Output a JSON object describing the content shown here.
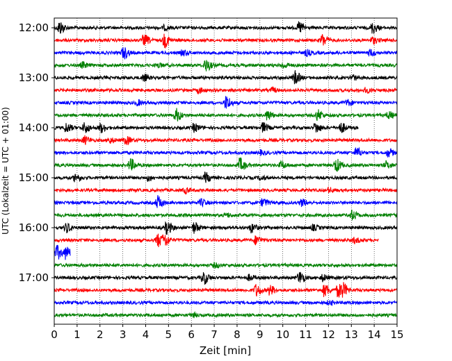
{
  "chart_data": {
    "type": "line",
    "title": "",
    "xlabel": "Zeit  [min]",
    "ylabel": "UTC (Lokalzeit = UTC + 01:00)",
    "xlim": [
      0,
      15
    ],
    "x_ticks": [
      "0",
      "1",
      "2",
      "3",
      "4",
      "5",
      "6",
      "7",
      "8",
      "9",
      "10",
      "11",
      "12",
      "13",
      "14",
      "15"
    ],
    "y_tick_labels": [
      "12:00",
      "13:00",
      "14:00",
      "15:00",
      "16:00",
      "17:00"
    ],
    "grid": "vertical dotted",
    "legend": "none",
    "colors": [
      "#000000",
      "#ff0000",
      "#0000ff",
      "#008000"
    ],
    "traces": [
      {
        "start": "12:00",
        "color": "#000000",
        "end_min": 15,
        "events": [
          [
            0.2,
            1.0
          ],
          [
            10.7,
            0.9
          ],
          [
            13.9,
            0.8
          ],
          [
            4.8,
            0.3
          ]
        ]
      },
      {
        "start": "12:15",
        "color": "#ff0000",
        "end_min": 15,
        "events": [
          [
            3.9,
            0.8
          ],
          [
            4.8,
            1.0
          ],
          [
            11.7,
            0.9
          ],
          [
            13.9,
            0.5
          ]
        ]
      },
      {
        "start": "12:30",
        "color": "#0000ff",
        "end_min": 15,
        "events": [
          [
            3.0,
            0.9
          ],
          [
            5.6,
            0.4
          ],
          [
            11.0,
            0.4
          ],
          [
            13.8,
            0.5
          ]
        ]
      },
      {
        "start": "12:45",
        "color": "#008000",
        "end_min": 15,
        "events": [
          [
            6.6,
            0.9
          ],
          [
            1.2,
            0.4
          ],
          [
            10.0,
            0.4
          ],
          [
            4.5,
            0.3
          ]
        ]
      },
      {
        "start": "13:00",
        "color": "#000000",
        "end_min": 15,
        "events": [
          [
            10.5,
            1.0
          ],
          [
            3.9,
            0.5
          ],
          [
            13.0,
            0.4
          ]
        ]
      },
      {
        "start": "13:15",
        "color": "#ff0000",
        "end_min": 15,
        "events": [
          [
            6.3,
            0.4
          ],
          [
            9.5,
            0.3
          ],
          [
            13.6,
            0.3
          ]
        ]
      },
      {
        "start": "13:30",
        "color": "#0000ff",
        "end_min": 15,
        "events": [
          [
            7.5,
            1.0
          ],
          [
            3.6,
            0.4
          ],
          [
            12.8,
            0.4
          ]
        ]
      },
      {
        "start": "13:45",
        "color": "#008000",
        "end_min": 15,
        "events": [
          [
            5.3,
            1.0
          ],
          [
            9.3,
            0.7
          ],
          [
            11.5,
            0.8
          ],
          [
            14.6,
            0.5
          ]
        ]
      },
      {
        "start": "14:00",
        "color": "#000000",
        "end_min": 13.3,
        "events": [
          [
            0.5,
            0.7
          ],
          [
            1.3,
            0.8
          ],
          [
            2.0,
            0.7
          ],
          [
            6.1,
            0.6
          ],
          [
            9.1,
            0.7
          ],
          [
            11.4,
            0.8
          ],
          [
            12.5,
            0.8
          ]
        ]
      },
      {
        "start": "14:15",
        "color": "#ff0000",
        "end_min": 15,
        "events": [
          [
            1.3,
            0.6
          ],
          [
            3.1,
            0.6
          ],
          [
            2.4,
            0.4
          ]
        ]
      },
      {
        "start": "14:30",
        "color": "#0000ff",
        "end_min": 15,
        "events": [
          [
            13.2,
            0.7
          ],
          [
            14.6,
            0.6
          ],
          [
            9.0,
            0.3
          ]
        ]
      },
      {
        "start": "14:45",
        "color": "#008000",
        "end_min": 15,
        "events": [
          [
            3.3,
            0.9
          ],
          [
            8.1,
            1.0
          ],
          [
            12.3,
            1.0
          ],
          [
            9.9,
            0.5
          ],
          [
            14.5,
            0.5
          ]
        ]
      },
      {
        "start": "15:00",
        "color": "#000000",
        "end_min": 15,
        "events": [
          [
            0.9,
            0.6
          ],
          [
            4.1,
            0.4
          ],
          [
            6.6,
            0.7
          ],
          [
            9.0,
            0.3
          ]
        ]
      },
      {
        "start": "15:15",
        "color": "#ff0000",
        "end_min": 15,
        "events": [
          [
            5.7,
            0.4
          ],
          [
            12.0,
            0.3
          ]
        ]
      },
      {
        "start": "15:30",
        "color": "#0000ff",
        "end_min": 15,
        "events": [
          [
            4.5,
            1.0
          ],
          [
            6.4,
            0.5
          ],
          [
            9.1,
            0.6
          ],
          [
            10.8,
            0.5
          ]
        ]
      },
      {
        "start": "15:45",
        "color": "#008000",
        "end_min": 15,
        "events": [
          [
            13.0,
            0.7
          ],
          [
            7.5,
            0.3
          ]
        ]
      },
      {
        "start": "16:00",
        "color": "#000000",
        "end_min": 15,
        "events": [
          [
            0.5,
            0.7
          ],
          [
            4.9,
            0.9
          ],
          [
            6.1,
            0.8
          ],
          [
            8.6,
            0.7
          ],
          [
            11.3,
            0.4
          ]
        ]
      },
      {
        "start": "16:15",
        "color": "#ff0000",
        "end_min": 14.2,
        "events": [
          [
            4.5,
            1.0
          ],
          [
            4.8,
            0.9
          ],
          [
            8.8,
            0.6
          ],
          [
            13.1,
            0.4
          ]
        ]
      },
      {
        "start": "16:30",
        "color": "#0000ff",
        "end_min": 0.7,
        "events": [
          [
            0.1,
            1.0
          ],
          [
            0.5,
            0.9
          ]
        ]
      },
      {
        "start": "16:45",
        "color": "#008000",
        "end_min": 15,
        "events": [
          [
            7.0,
            0.3
          ]
        ]
      },
      {
        "start": "17:00",
        "color": "#000000",
        "end_min": 15,
        "events": [
          [
            6.5,
            1.0
          ],
          [
            10.7,
            1.0
          ],
          [
            11.7,
            0.5
          ],
          [
            8.5,
            0.4
          ]
        ]
      },
      {
        "start": "17:15",
        "color": "#ff0000",
        "end_min": 15,
        "events": [
          [
            8.8,
            0.9
          ],
          [
            9.4,
            0.7
          ],
          [
            11.8,
            0.9
          ],
          [
            12.4,
            1.0
          ],
          [
            12.6,
            0.8
          ]
        ]
      },
      {
        "start": "17:30",
        "color": "#0000ff",
        "end_min": 15,
        "events": [
          [
            12.0,
            0.3
          ]
        ]
      },
      {
        "start": "17:45",
        "color": "#008000",
        "end_min": 15,
        "events": [
          [
            6.0,
            0.3
          ]
        ]
      }
    ]
  }
}
